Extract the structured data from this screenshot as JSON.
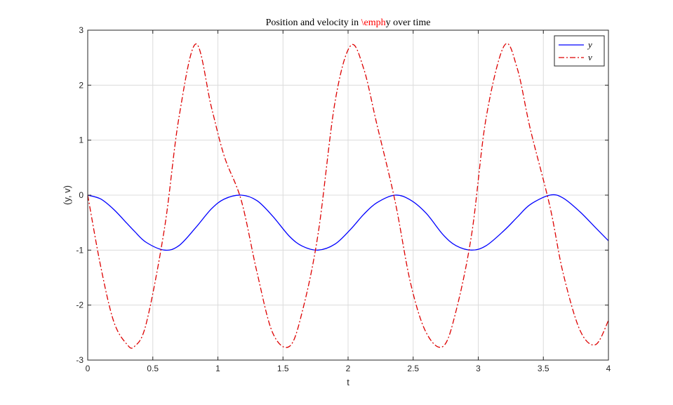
{
  "chart_data": {
    "type": "line",
    "title": {
      "prefix": "Position and velocity in ",
      "highlight": "\\emph",
      "suffix": "y over time",
      "highlight_color": "#ff0000"
    },
    "xlabel": "t",
    "ylabel": "(y, v)",
    "xlim": [
      0,
      4
    ],
    "ylim": [
      -3,
      3
    ],
    "xticks": [
      0,
      0.5,
      1,
      1.5,
      2,
      2.5,
      3,
      3.5,
      4
    ],
    "xtick_labels": [
      "0",
      "0.5",
      "1",
      "1.5",
      "2",
      "2.5",
      "3",
      "3.5",
      "4"
    ],
    "yticks": [
      -3,
      -2,
      -1,
      0,
      1,
      2,
      3
    ],
    "ytick_labels": [
      "-3",
      "-2",
      "-1",
      "0",
      "1",
      "2",
      "3"
    ],
    "grid": true,
    "legend_position": "top-right",
    "x": [
      0,
      0.1,
      0.2,
      0.3,
      0.36,
      0.45,
      0.59,
      0.7,
      0.83,
      0.95,
      1.05,
      1.18,
      1.3,
      1.42,
      1.55,
      1.65,
      1.77,
      1.9,
      2.02,
      2.12,
      2.22,
      2.36,
      2.48,
      2.6,
      2.73,
      2.83,
      2.95,
      3.06,
      3.2,
      3.3,
      3.4,
      3.55,
      3.65,
      3.78,
      3.9,
      4.0
    ],
    "series": [
      {
        "name": "y",
        "color": "#0000ff",
        "dash": "solid",
        "values": [
          0,
          -0.07,
          -0.26,
          -0.51,
          -0.66,
          -0.86,
          -1.0,
          -0.92,
          -0.59,
          -0.25,
          -0.07,
          0.0,
          -0.1,
          -0.38,
          -0.75,
          -0.93,
          -1.0,
          -0.89,
          -0.62,
          -0.35,
          -0.14,
          0.0,
          -0.09,
          -0.33,
          -0.72,
          -0.92,
          -1.0,
          -0.92,
          -0.64,
          -0.4,
          -0.17,
          0.0,
          -0.05,
          -0.3,
          -0.59,
          -0.83
        ]
      },
      {
        "name": "v",
        "color": "#dd0000",
        "dash": "dashdot",
        "values": [
          0,
          -1.3,
          -2.3,
          -2.71,
          -2.75,
          -2.33,
          -0.6,
          1.4,
          2.75,
          1.6,
          0.7,
          -0.1,
          -1.4,
          -2.5,
          -2.75,
          -2.1,
          -0.7,
          1.7,
          2.72,
          2.3,
          1.3,
          -0.1,
          -1.6,
          -2.5,
          -2.75,
          -2.1,
          -0.7,
          1.4,
          2.72,
          2.3,
          1.2,
          -0.2,
          -1.4,
          -2.45,
          -2.72,
          -2.28
        ]
      }
    ]
  }
}
